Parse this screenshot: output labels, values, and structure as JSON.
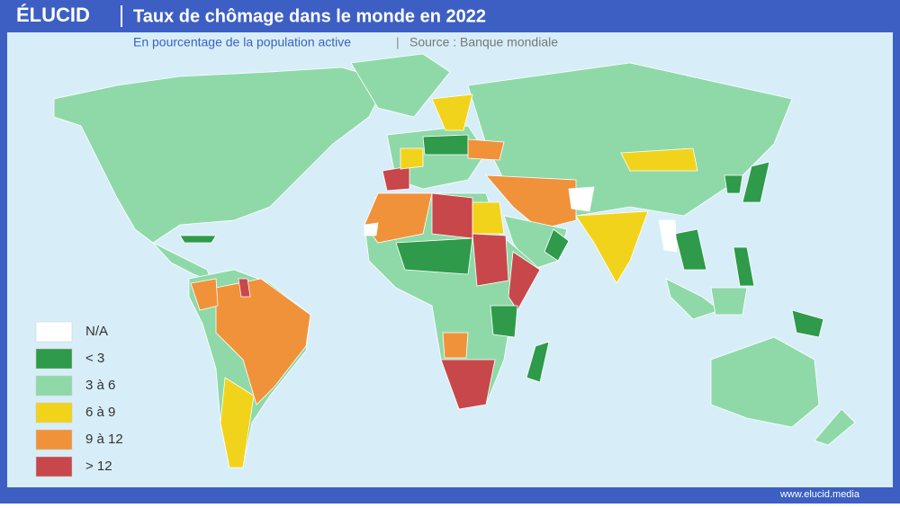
{
  "header": {
    "logo": "ÉLUCID",
    "title": "Taux de chômage dans le monde en 2022"
  },
  "subtitle": {
    "measure": "En pourcentage de la population active",
    "separator": "|",
    "source": "Source : Banque mondiale"
  },
  "legend": {
    "items": [
      {
        "label": "N/A",
        "color": "#ffffff"
      },
      {
        "label": "< 3",
        "color": "#2e9a4a"
      },
      {
        "label": "3 à 6",
        "color": "#8fd9a8"
      },
      {
        "label": "6 à 9",
        "color": "#f2d31b"
      },
      {
        "label": "9 à 12",
        "color": "#f0923a"
      },
      {
        "label": "> 12",
        "color": "#c8474b"
      }
    ]
  },
  "footer": {
    "url": "www.elucid.media"
  }
}
